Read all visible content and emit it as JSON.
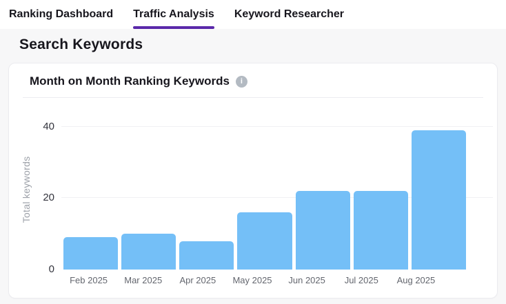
{
  "tabs": {
    "active_index": 1,
    "items": [
      {
        "label": "Ranking Dashboard"
      },
      {
        "label": "Traffic Analysis"
      },
      {
        "label": "Keyword Researcher"
      }
    ]
  },
  "page": {
    "heading": "Search Keywords"
  },
  "card": {
    "title": "Month on Month Ranking Keywords",
    "info_icon_glyph": "i"
  },
  "chart_data": {
    "type": "bar",
    "title": "Month on Month Ranking Keywords",
    "categories": [
      "Feb 2025",
      "Mar 2025",
      "Apr 2025",
      "May 2025",
      "Jun 2025",
      "Jul 2025",
      "Aug 2025"
    ],
    "values": [
      9,
      10,
      8,
      16,
      22,
      22,
      39
    ],
    "xlabel": "",
    "ylabel": "Total keywords",
    "yticks": [
      0,
      20,
      40
    ],
    "ylim": [
      0,
      45
    ],
    "legend": "none",
    "grid": "horizontal",
    "bar_color": "#74bff7"
  },
  "colors": {
    "accent_purple": "#5a28aa",
    "bar_blue": "#74bff7",
    "text_dark": "#17161d",
    "month_label_gray": "#63666e",
    "axis_title_gray": "#9da1a9",
    "tick_gray": "#32333c",
    "page_bg": "#f7f7f8",
    "card_border": "#ebebef",
    "gridline": "#f1f1f3",
    "info_icon_bg": "#b3bac2"
  }
}
